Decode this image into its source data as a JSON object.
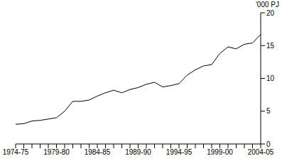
{
  "chart_data": {
    "type": "line",
    "y_label": "'000 PJ",
    "categories": [
      "1974-75",
      null,
      null,
      null,
      null,
      "1979-80",
      null,
      null,
      null,
      null,
      "1984-85",
      null,
      null,
      null,
      null,
      "1989-90",
      null,
      null,
      null,
      null,
      "1994-95",
      null,
      null,
      null,
      null,
      "1999-00",
      null,
      null,
      null,
      null,
      "2004-05"
    ],
    "values": [
      3.0,
      3.1,
      3.5,
      3.6,
      3.8,
      4.0,
      5.0,
      6.5,
      6.5,
      6.7,
      7.3,
      7.8,
      8.2,
      7.8,
      8.3,
      8.6,
      9.1,
      9.4,
      8.7,
      8.9,
      9.2,
      10.5,
      11.3,
      11.9,
      12.1,
      13.8,
      14.8,
      14.5,
      15.2,
      15.4,
      16.7
    ],
    "color": "#000000",
    "ylim": [
      0,
      20
    ],
    "yticks": [
      0,
      5,
      10,
      15,
      20
    ],
    "grid": false
  }
}
